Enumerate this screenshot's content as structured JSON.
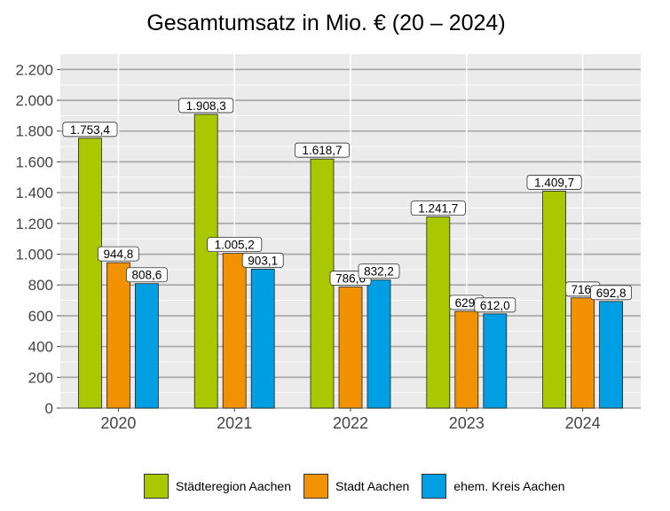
{
  "title": "Gesamtumsatz in Mio. € (20 – 2024)",
  "chart_data": {
    "type": "bar",
    "title": "Gesamtumsatz in Mio. € (20 – 2024)",
    "xlabel": "",
    "ylabel": "",
    "categories": [
      "2020",
      "2021",
      "2022",
      "2023",
      "2024"
    ],
    "ylim": [
      0,
      2300
    ],
    "yticks": [
      0,
      200,
      400,
      600,
      800,
      1000,
      1200,
      1400,
      1600,
      1800,
      2000,
      2200
    ],
    "ytick_labels": [
      "0",
      "200",
      "400",
      "600",
      "800",
      "1.000",
      "1.200",
      "1.400",
      "1.600",
      "1.800",
      "2.000",
      "2.200"
    ],
    "grid": true,
    "legend_position": "bottom",
    "series": [
      {
        "name": "Städteregion Aachen",
        "color": "#aac800",
        "values": [
          1753.4,
          1908.3,
          1618.7,
          1241.7,
          1409.7
        ],
        "labels": [
          "1.753,4",
          "1.908,3",
          "1.618,7",
          "1.241,7",
          "1.409,7"
        ]
      },
      {
        "name": "Stadt Aachen",
        "color": "#f39200",
        "values": [
          944.8,
          1005.2,
          786.6,
          629.0,
          716.0
        ],
        "labels": [
          "944,8",
          "1.005,2",
          "786,6",
          "629,",
          "716,"
        ]
      },
      {
        "name": "ehem. Kreis Aachen",
        "color": "#009fe3",
        "values": [
          808.6,
          903.1,
          832.2,
          612.0,
          692.8
        ],
        "labels": [
          "808,6",
          "903,1",
          "832,2",
          "612,0",
          "692,8"
        ]
      }
    ]
  }
}
